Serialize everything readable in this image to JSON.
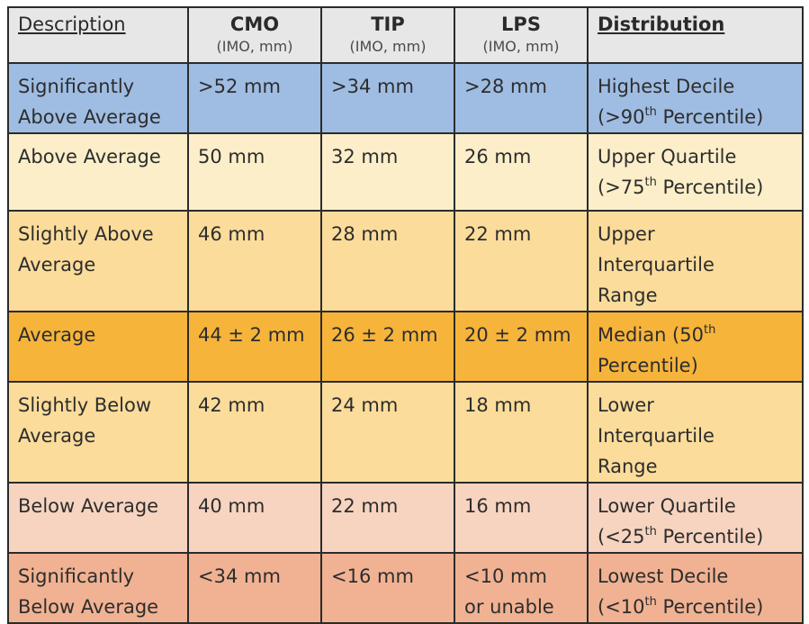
{
  "headers": {
    "description": "Description",
    "cmo": "CMO",
    "cmo_unit": "(IMO, mm)",
    "tip": "TIP",
    "tip_unit": "(IMO, mm)",
    "lps": "LPS",
    "lps_unit": "(IMO, mm)",
    "distribution": "Distribution"
  },
  "rows": [
    {
      "desc": [
        "Significantly",
        "Above Average"
      ],
      "cmo": ">52 mm",
      "tip": ">34 mm",
      "lps": [
        ">28 mm"
      ],
      "dist": [
        {
          "pre": "Highest Decile",
          "sup": "",
          "post": ""
        },
        {
          "pre": "(>90",
          "sup": "th",
          "post": " Percentile)"
        }
      ]
    },
    {
      "desc": [
        "Above Average"
      ],
      "cmo": "50 mm",
      "tip": "32 mm",
      "lps": [
        "26 mm"
      ],
      "dist": [
        {
          "pre": "Upper Quartile",
          "sup": "",
          "post": ""
        },
        {
          "pre": "(>75",
          "sup": "th",
          "post": " Percentile)"
        }
      ]
    },
    {
      "desc": [
        "Slightly Above",
        "Average"
      ],
      "cmo": "46 mm",
      "tip": "28 mm",
      "lps": [
        "22 mm"
      ],
      "dist": [
        {
          "pre": "Upper",
          "sup": "",
          "post": ""
        },
        {
          "pre": "Interquartile",
          "sup": "",
          "post": ""
        },
        {
          "pre": "Range",
          "sup": "",
          "post": ""
        }
      ]
    },
    {
      "desc": [
        "Average"
      ],
      "cmo": "44 ± 2 mm",
      "tip": "26 ± 2 mm",
      "lps": [
        "20 ± 2 mm"
      ],
      "dist": [
        {
          "pre": "Median (50",
          "sup": "th",
          "post": ""
        },
        {
          "pre": "Percentile)",
          "sup": "",
          "post": ""
        }
      ]
    },
    {
      "desc": [
        "Slightly Below",
        "Average"
      ],
      "cmo": "42 mm",
      "tip": "24 mm",
      "lps": [
        "18 mm"
      ],
      "dist": [
        {
          "pre": "Lower",
          "sup": "",
          "post": ""
        },
        {
          "pre": "Interquartile",
          "sup": "",
          "post": ""
        },
        {
          "pre": "Range",
          "sup": "",
          "post": ""
        }
      ]
    },
    {
      "desc": [
        "Below Average"
      ],
      "cmo": "40 mm",
      "tip": "22 mm",
      "lps": [
        "16 mm"
      ],
      "dist": [
        {
          "pre": "Lower Quartile",
          "sup": "",
          "post": ""
        },
        {
          "pre": "(<25",
          "sup": "th",
          "post": " Percentile)"
        }
      ]
    },
    {
      "desc": [
        "Significantly",
        "Below Average"
      ],
      "cmo": "<34 mm",
      "tip": "<16 mm",
      "lps": [
        "<10 mm",
        "or unable"
      ],
      "dist": [
        {
          "pre": "Lowest Decile",
          "sup": "",
          "post": ""
        },
        {
          "pre": "(<10",
          "sup": "th",
          "post": " Percentile)"
        }
      ]
    }
  ]
}
